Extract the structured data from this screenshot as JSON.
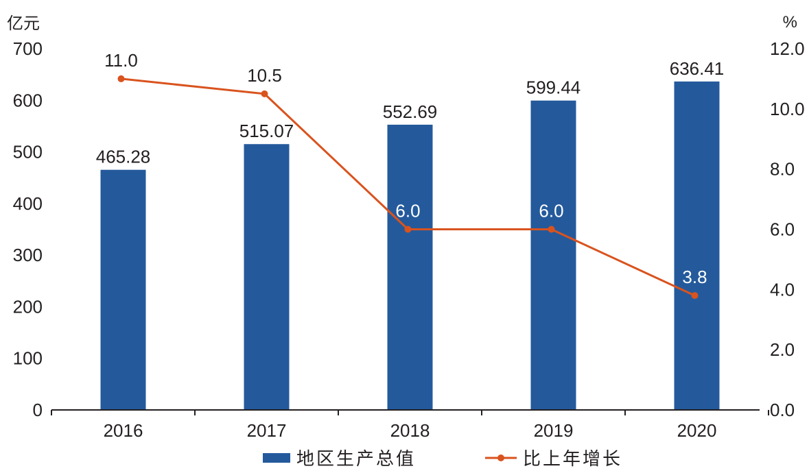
{
  "chart_data": {
    "type": "bar+line",
    "categories": [
      "2016",
      "2017",
      "2018",
      "2019",
      "2020"
    ],
    "series": [
      {
        "name": "地区生产总值",
        "type": "bar",
        "axis": "left",
        "color": "#245a9c",
        "values": [
          465.28,
          515.07,
          552.69,
          599.44,
          636.41
        ],
        "labels": [
          "465.28",
          "515.07",
          "552.69",
          "599.44",
          "636.41"
        ]
      },
      {
        "name": "比上年增长",
        "type": "line",
        "axis": "right",
        "color": "#d9531e",
        "values": [
          11.0,
          10.5,
          6.0,
          6.0,
          3.8
        ],
        "labels": [
          "11.0",
          "10.5",
          "6.0",
          "6.0",
          "3.8"
        ],
        "label_colors": [
          "#231f20",
          "#231f20",
          "#ffffff",
          "#ffffff",
          "#ffffff"
        ]
      }
    ],
    "y_left": {
      "unit": "亿元",
      "ylim": [
        0,
        700
      ],
      "ticks": [
        "0",
        "100",
        "200",
        "300",
        "400",
        "500",
        "600",
        "700"
      ]
    },
    "y_right": {
      "unit": "%",
      "ylim": [
        0,
        12
      ],
      "ticks": [
        "0.0",
        "2.0",
        "4.0",
        "6.0",
        "8.0",
        "10.0",
        "12.0"
      ]
    },
    "grid": false,
    "legend": "bottom-center"
  }
}
